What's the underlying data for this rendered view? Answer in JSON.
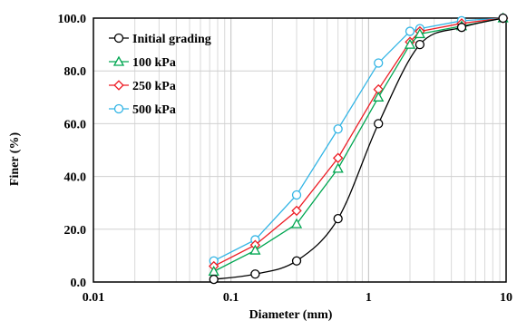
{
  "chart_data": {
    "type": "line",
    "xlabel": "Diameter (mm)",
    "ylabel": "Finer (%)",
    "xscale": "log",
    "xlim": [
      0.01,
      10
    ],
    "ylim": [
      0,
      100
    ],
    "x_ticks": [
      0.01,
      0.1,
      1,
      10
    ],
    "x_tick_labels": [
      "0.01",
      "0.1",
      "1",
      "10"
    ],
    "y_ticks": [
      0,
      20,
      40,
      60,
      80,
      100
    ],
    "y_tick_labels": [
      "0.0",
      "20.0",
      "40.0",
      "60.0",
      "80.0",
      "100.0"
    ],
    "grid": "on (log minor verticals, major horizontals)",
    "legend_position": "top-left",
    "series": [
      {
        "name": "Initial grading",
        "color": "#000000",
        "marker": "circle",
        "smooth": true,
        "x": [
          0.075,
          0.15,
          0.3,
          0.6,
          1.18,
          2.36,
          4.75,
          9.5
        ],
        "y": [
          1,
          3,
          8,
          24,
          60,
          90,
          96.5,
          100
        ]
      },
      {
        "name": "100 kPa",
        "color": "#00a651",
        "marker": "triangle",
        "smooth": false,
        "x": [
          0.075,
          0.15,
          0.3,
          0.6,
          1.18,
          2.0,
          2.36,
          4.75,
          9.5
        ],
        "y": [
          4,
          12,
          22,
          43,
          70,
          90,
          94,
          97,
          100
        ]
      },
      {
        "name": "250 kPa",
        "color": "#ed1c24",
        "marker": "diamond",
        "smooth": false,
        "x": [
          0.075,
          0.15,
          0.3,
          0.6,
          1.18,
          2.0,
          2.36,
          4.75,
          9.5
        ],
        "y": [
          6,
          14,
          27,
          47,
          73,
          91,
          95,
          98,
          100
        ]
      },
      {
        "name": "500 kPa",
        "color": "#33b5e5",
        "marker": "circle",
        "smooth": false,
        "x": [
          0.075,
          0.15,
          0.3,
          0.6,
          1.18,
          2.0,
          2.36,
          4.75,
          9.5
        ],
        "y": [
          8,
          16,
          33,
          58,
          83,
          95,
          96,
          99,
          100
        ]
      }
    ]
  }
}
